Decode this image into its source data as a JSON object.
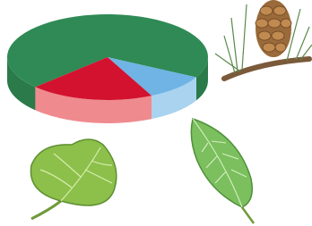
{
  "chart_data": {
    "type": "pie",
    "three_d": true,
    "values": [
      70,
      10,
      20
    ],
    "colors": [
      "#2f8a55",
      "#6fb4e4",
      "#d3122f"
    ],
    "side_colors": [
      "#2a7a4a",
      "#a9d3ef",
      "#ef8a8e"
    ]
  }
}
